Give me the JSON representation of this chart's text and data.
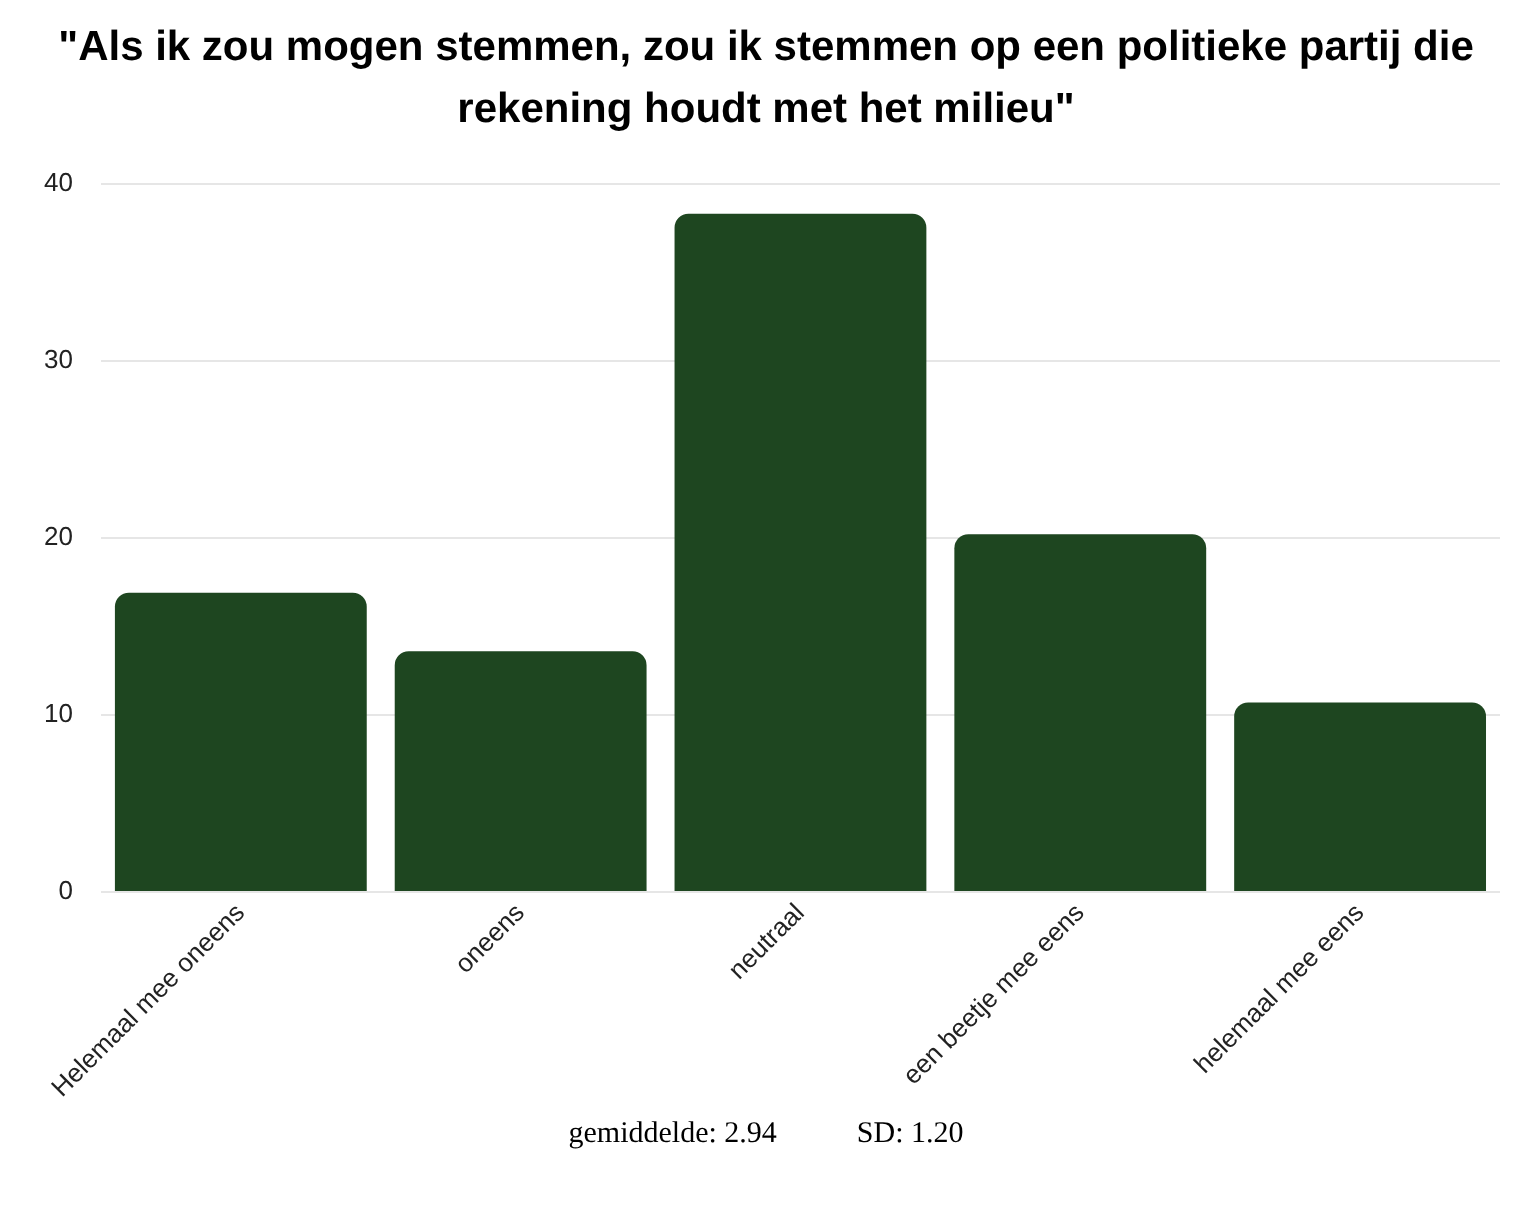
{
  "chart_data": {
    "type": "bar",
    "title": "\"Als ik zou mogen stemmen, zou ik stemmen op een politieke partij die rekening houdt met het milieu\"",
    "categories": [
      "Helemaal mee oneens",
      "oneens",
      "neutraal",
      "een beetje mee eens",
      "helemaal mee eens"
    ],
    "values": [
      16.9,
      13.6,
      38.3,
      20.2,
      10.7
    ],
    "color": "#1e4620",
    "ylim": [
      0,
      40
    ],
    "yticks": [
      0,
      10,
      20,
      30,
      40
    ],
    "grid": "y",
    "annotations": [
      "gemiddelde: 2.94",
      "SD: 1.20"
    ]
  }
}
